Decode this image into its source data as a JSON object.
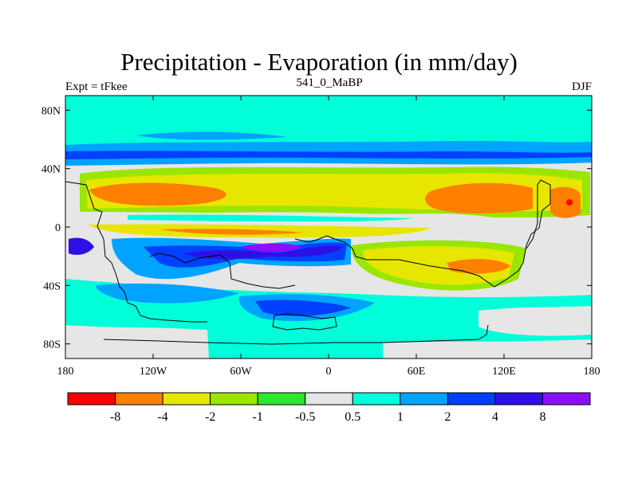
{
  "title": "Precipitation - Evaporation (in mm/day)",
  "left_subtitle": "Expt = tFkee",
  "center_subtitle": "541_0_MaBP",
  "right_subtitle": "DJF",
  "y_axis": {
    "tick_labels": [
      "80N",
      "40N",
      "0",
      "40S",
      "80S"
    ],
    "tick_values": [
      80,
      40,
      0,
      -40,
      -80
    ],
    "range": [
      -90,
      90
    ]
  },
  "x_axis": {
    "tick_labels": [
      "180",
      "120W",
      "60W",
      "0",
      "60E",
      "120E",
      "180"
    ],
    "tick_values": [
      -180,
      -120,
      -60,
      0,
      60,
      120,
      180
    ],
    "range": [
      -180,
      180
    ]
  },
  "colorbar": {
    "colors": [
      "#ff0000",
      "#ff8000",
      "#e6e600",
      "#9ae600",
      "#2ee62e",
      "#e6e6e6",
      "#00ffd9",
      "#00a3ff",
      "#0040ff",
      "#2e10e6",
      "#8a10ff"
    ],
    "labels": [
      "-8",
      "-4",
      "-2",
      "-1",
      "-0.5",
      "0.5",
      "1",
      "2",
      "4",
      "8"
    ]
  }
}
